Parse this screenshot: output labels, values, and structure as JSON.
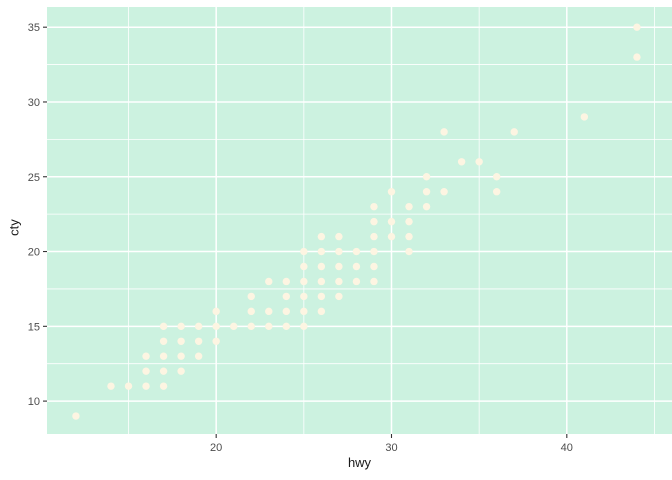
{
  "chart_data": {
    "type": "scatter",
    "title": "",
    "xlabel": "hwy",
    "ylabel": "cty",
    "x_ticks": [
      20,
      30,
      40
    ],
    "x_minor_ticks": [
      15,
      25,
      35,
      45
    ],
    "y_ticks": [
      10,
      15,
      20,
      25,
      30,
      35
    ],
    "y_minor_ticks": [
      12.5,
      17.5,
      22.5,
      27.5,
      32.5
    ],
    "x_domain": [
      10.35,
      46.0
    ],
    "y_domain": [
      7.8,
      36.35
    ],
    "grid": "on",
    "legend": "none",
    "points": [
      [
        12,
        9
      ],
      [
        14,
        11
      ],
      [
        15,
        11
      ],
      [
        16,
        11
      ],
      [
        17,
        11
      ],
      [
        16,
        12
      ],
      [
        17,
        12
      ],
      [
        18,
        12
      ],
      [
        16,
        13
      ],
      [
        17,
        13
      ],
      [
        18,
        13
      ],
      [
        19,
        13
      ],
      [
        17,
        14
      ],
      [
        18,
        14
      ],
      [
        19,
        14
      ],
      [
        20,
        14
      ],
      [
        17,
        15
      ],
      [
        18,
        15
      ],
      [
        19,
        15
      ],
      [
        20,
        15
      ],
      [
        21,
        15
      ],
      [
        22,
        15
      ],
      [
        23,
        15
      ],
      [
        24,
        15
      ],
      [
        25,
        15
      ],
      [
        20,
        16
      ],
      [
        22,
        16
      ],
      [
        23,
        16
      ],
      [
        24,
        16
      ],
      [
        25,
        16
      ],
      [
        26,
        16
      ],
      [
        22,
        17
      ],
      [
        24,
        17
      ],
      [
        25,
        17
      ],
      [
        26,
        17
      ],
      [
        27,
        17
      ],
      [
        23,
        18
      ],
      [
        24,
        18
      ],
      [
        25,
        18
      ],
      [
        26,
        18
      ],
      [
        27,
        18
      ],
      [
        28,
        18
      ],
      [
        29,
        18
      ],
      [
        25,
        19
      ],
      [
        26,
        19
      ],
      [
        27,
        19
      ],
      [
        28,
        19
      ],
      [
        29,
        19
      ],
      [
        25,
        20
      ],
      [
        26,
        20
      ],
      [
        27,
        20
      ],
      [
        28,
        20
      ],
      [
        29,
        20
      ],
      [
        31,
        20
      ],
      [
        26,
        21
      ],
      [
        27,
        21
      ],
      [
        29,
        21
      ],
      [
        30,
        21
      ],
      [
        31,
        21
      ],
      [
        29,
        22
      ],
      [
        30,
        22
      ],
      [
        31,
        22
      ],
      [
        29,
        23
      ],
      [
        31,
        23
      ],
      [
        32,
        23
      ],
      [
        30,
        24
      ],
      [
        32,
        24
      ],
      [
        33,
        24
      ],
      [
        36,
        24
      ],
      [
        32,
        25
      ],
      [
        36,
        25
      ],
      [
        34,
        26
      ],
      [
        35,
        26
      ],
      [
        33,
        28
      ],
      [
        37,
        28
      ],
      [
        41,
        29
      ],
      [
        44,
        33
      ],
      [
        44,
        35
      ]
    ],
    "colors": {
      "page_background": "#ffffff",
      "panel_background": "#ccf2e0",
      "gridline_major": "#ffffff",
      "gridline_minor": "#ffffff",
      "point_fill": "#fdf5e2",
      "axis_text": "#4d4d4d",
      "axis_title": "#1a1a1a",
      "tick_mark": "#333333"
    }
  }
}
